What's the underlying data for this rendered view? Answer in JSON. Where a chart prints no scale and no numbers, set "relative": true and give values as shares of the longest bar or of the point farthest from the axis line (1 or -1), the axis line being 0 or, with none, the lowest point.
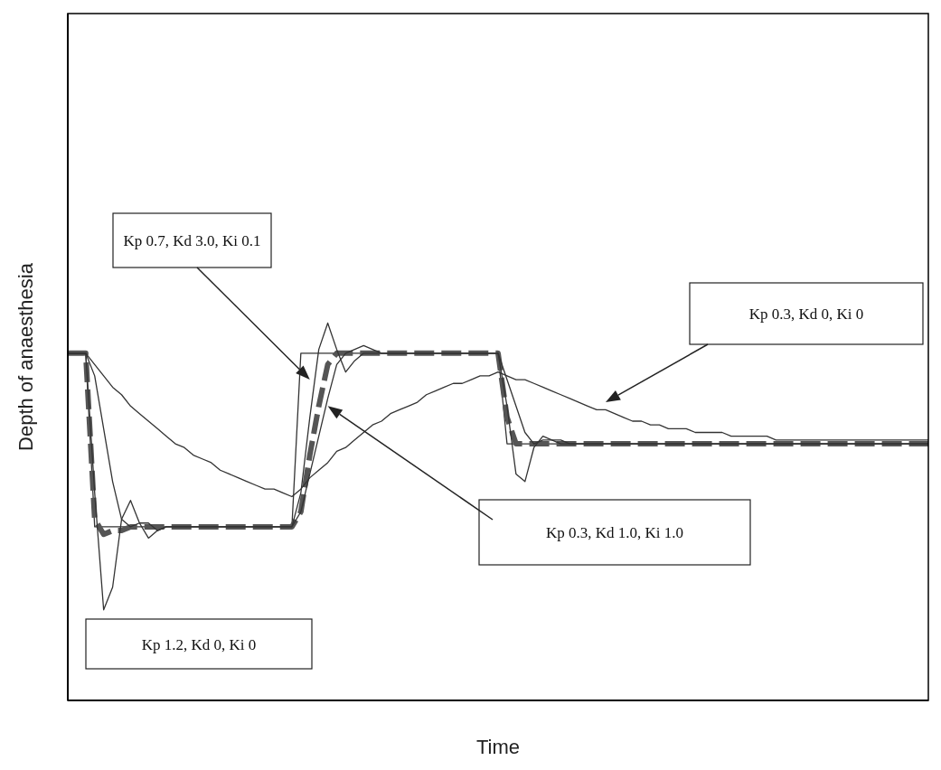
{
  "chart_data": {
    "type": "line",
    "relative": true,
    "xlabel": "Time",
    "ylabel": "Depth of anaesthesia",
    "categories": [
      null,
      null,
      null,
      null,
      null,
      null,
      null,
      null,
      null,
      null,
      null,
      null,
      null,
      null,
      null,
      null,
      null,
      null,
      null,
      null,
      null,
      null,
      null,
      null,
      null,
      null,
      null,
      null,
      null,
      null,
      null,
      null,
      null,
      null,
      null,
      null,
      null,
      null,
      null,
      null,
      null,
      null,
      null,
      null,
      null,
      null,
      null,
      null,
      null,
      null,
      null,
      null,
      null,
      null,
      null,
      null,
      null,
      null,
      null,
      null,
      null,
      null,
      null,
      null,
      null,
      null,
      null,
      null,
      null,
      null,
      null,
      null,
      null,
      null,
      null,
      null,
      null,
      null,
      null,
      null,
      null,
      null,
      null,
      null,
      null,
      null,
      null,
      null,
      null,
      null,
      null,
      null,
      null,
      null,
      null,
      null,
      null
    ],
    "series": [
      {
        "color": "#333333",
        "line_style": "solid",
        "values": [
          0.92,
          0.92,
          0.92,
          0.46,
          0.46,
          0.46,
          0.46,
          0.46,
          0.46,
          0.46,
          0.46,
          0.46,
          0.46,
          0.46,
          0.46,
          0.46,
          0.46,
          0.46,
          0.46,
          0.46,
          0.46,
          0.46,
          0.46,
          0.46,
          0.46,
          0.46,
          0.92,
          0.92,
          0.92,
          0.92,
          0.92,
          0.92,
          0.92,
          0.92,
          0.92,
          0.92,
          0.92,
          0.92,
          0.92,
          0.92,
          0.92,
          0.92,
          0.92,
          0.92,
          0.92,
          0.92,
          0.92,
          0.92,
          0.92,
          0.68,
          0.68,
          0.68,
          0.68,
          0.68,
          0.68,
          0.68,
          0.68,
          0.68,
          0.68,
          0.68,
          0.68,
          0.68,
          0.68,
          0.68,
          0.68,
          0.68,
          0.68,
          0.68,
          0.68,
          0.68,
          0.68,
          0.68,
          0.68,
          0.68,
          0.68,
          0.68,
          0.68,
          0.68,
          0.68,
          0.68,
          0.68,
          0.68,
          0.68,
          0.68,
          0.68,
          0.68,
          0.68,
          0.68,
          0.68,
          0.68,
          0.68,
          0.68,
          0.68,
          0.68,
          0.68,
          0.68,
          0.68
        ]
      },
      {
        "color": "#555555",
        "line_style": "dashed",
        "values": [
          0.92,
          0.92,
          0.92,
          0.48,
          0.44,
          0.45,
          0.45,
          0.46,
          0.46,
          0.46,
          0.46,
          0.46,
          0.46,
          0.46,
          0.46,
          0.46,
          0.46,
          0.46,
          0.46,
          0.46,
          0.46,
          0.46,
          0.46,
          0.46,
          0.46,
          0.46,
          0.5,
          0.65,
          0.78,
          0.89,
          0.92,
          0.92,
          0.92,
          0.92,
          0.92,
          0.92,
          0.92,
          0.92,
          0.92,
          0.92,
          0.92,
          0.92,
          0.92,
          0.92,
          0.92,
          0.92,
          0.92,
          0.92,
          0.92,
          0.75,
          0.68,
          0.68,
          0.68,
          0.68,
          0.68,
          0.68,
          0.68,
          0.68,
          0.68,
          0.68,
          0.68,
          0.68,
          0.68,
          0.68,
          0.68,
          0.68,
          0.68,
          0.68,
          0.68,
          0.68,
          0.68,
          0.68,
          0.68,
          0.68,
          0.68,
          0.68,
          0.68,
          0.68,
          0.68,
          0.68,
          0.68,
          0.68,
          0.68,
          0.68,
          0.68,
          0.68,
          0.68,
          0.68,
          0.68,
          0.68,
          0.68,
          0.68,
          0.68,
          0.68,
          0.68,
          0.68,
          0.68
        ]
      },
      {
        "color": "#333333",
        "line_style": "solid",
        "values": [
          0.92,
          0.92,
          0.92,
          0.55,
          0.24,
          0.3,
          0.48,
          0.53,
          0.47,
          0.43,
          0.45,
          0.46,
          0.46,
          0.46,
          0.46,
          0.46,
          0.46,
          0.46,
          0.46,
          0.46,
          0.46,
          0.46,
          0.46,
          0.46,
          0.46,
          0.46,
          0.55,
          0.75,
          0.93,
          1.0,
          0.93,
          0.87,
          0.9,
          0.92,
          0.92,
          0.92,
          0.92,
          0.92,
          0.92,
          0.92,
          0.92,
          0.92,
          0.92,
          0.92,
          0.92,
          0.92,
          0.92,
          0.92,
          0.92,
          0.78,
          0.6,
          0.58,
          0.67,
          0.7,
          0.69,
          0.68,
          0.68,
          0.68,
          0.68,
          0.68,
          0.68,
          0.68,
          0.68,
          0.68,
          0.68,
          0.68,
          0.68,
          0.68,
          0.68,
          0.68,
          0.68,
          0.68,
          0.68,
          0.68,
          0.68,
          0.68,
          0.68,
          0.68,
          0.68,
          0.68,
          0.68,
          0.68,
          0.68,
          0.68,
          0.68,
          0.68,
          0.68,
          0.68,
          0.68,
          0.68,
          0.68,
          0.68,
          0.68,
          0.68,
          0.68,
          0.68,
          0.68
        ]
      },
      {
        "color": "#333333",
        "line_style": "solid",
        "values": [
          0.92,
          0.92,
          0.92,
          0.86,
          0.72,
          0.58,
          0.48,
          0.46,
          0.47,
          0.47,
          0.45,
          0.46,
          0.46,
          0.46,
          0.46,
          0.46,
          0.46,
          0.46,
          0.46,
          0.46,
          0.46,
          0.46,
          0.46,
          0.46,
          0.46,
          0.46,
          0.5,
          0.6,
          0.7,
          0.8,
          0.89,
          0.92,
          0.93,
          0.94,
          0.93,
          0.92,
          0.92,
          0.92,
          0.92,
          0.92,
          0.92,
          0.92,
          0.92,
          0.92,
          0.92,
          0.92,
          0.92,
          0.92,
          0.92,
          0.85,
          0.78,
          0.71,
          0.68,
          0.69,
          0.69,
          0.69,
          0.68,
          0.68,
          0.68,
          0.68,
          0.68,
          0.68,
          0.68,
          0.68,
          0.68,
          0.68,
          0.68,
          0.68,
          0.68,
          0.68,
          0.68,
          0.68,
          0.68,
          0.68,
          0.68,
          0.68,
          0.68,
          0.68,
          0.68,
          0.68,
          0.68,
          0.68,
          0.68,
          0.68,
          0.68,
          0.68,
          0.68,
          0.68,
          0.68,
          0.68,
          0.68,
          0.68,
          0.68,
          0.68,
          0.68,
          0.68,
          0.68
        ]
      },
      {
        "color": "#333333",
        "line_style": "solid",
        "values": [
          0.92,
          0.92,
          0.92,
          0.89,
          0.86,
          0.83,
          0.81,
          0.78,
          0.76,
          0.74,
          0.72,
          0.7,
          0.68,
          0.67,
          0.65,
          0.64,
          0.63,
          0.61,
          0.6,
          0.59,
          0.58,
          0.57,
          0.56,
          0.56,
          0.55,
          0.54,
          0.56,
          0.59,
          0.61,
          0.63,
          0.66,
          0.67,
          0.69,
          0.71,
          0.73,
          0.74,
          0.76,
          0.77,
          0.78,
          0.79,
          0.81,
          0.82,
          0.83,
          0.84,
          0.84,
          0.85,
          0.86,
          0.86,
          0.87,
          0.86,
          0.85,
          0.85,
          0.84,
          0.83,
          0.82,
          0.81,
          0.8,
          0.79,
          0.78,
          0.77,
          0.77,
          0.76,
          0.75,
          0.74,
          0.74,
          0.73,
          0.73,
          0.72,
          0.72,
          0.72,
          0.71,
          0.71,
          0.71,
          0.71,
          0.7,
          0.7,
          0.7,
          0.7,
          0.7,
          0.69,
          0.69,
          0.69,
          0.69,
          0.69,
          0.69,
          0.69,
          0.69,
          0.69,
          0.69,
          0.69,
          0.69,
          0.69,
          0.69,
          0.69,
          0.69,
          0.69,
          0.69
        ]
      }
    ],
    "annotations": [
      "Kp 0.7, Kd 3.0, Ki 0.1",
      "Kp 0.3, Kd 0, Ki 0",
      "Kp 0.3, Kd 1.0, Ki 1.0",
      "Kp 1.2, Kd 0, Ki 0"
    ]
  }
}
